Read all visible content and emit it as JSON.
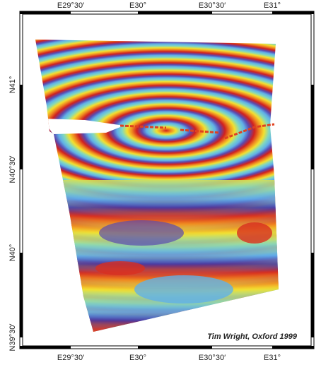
{
  "map": {
    "top_labels": [
      "E29°30′",
      "E30°",
      "E30°30′",
      "E31°"
    ],
    "bottom_labels": [
      "E29°30′",
      "E30°",
      "E30°30′",
      "E31°"
    ],
    "left_labels": [
      "N41°",
      "N40°30′",
      "N40°",
      "N39°30′"
    ],
    "credit": "Tim Wright, Oxford 1999"
  }
}
